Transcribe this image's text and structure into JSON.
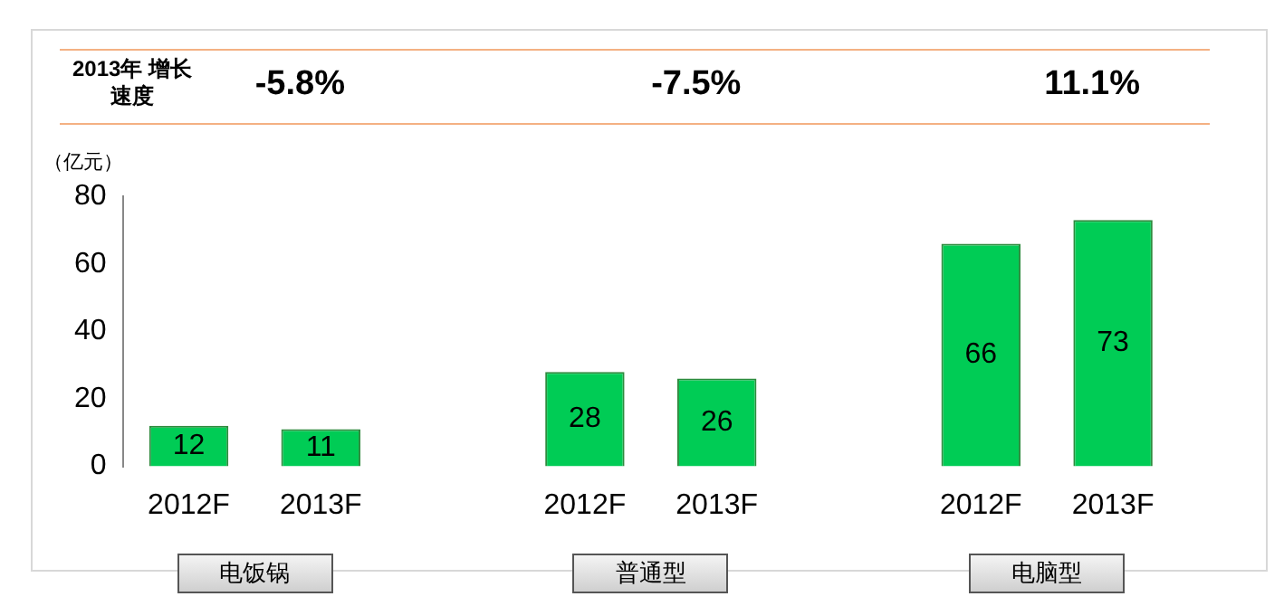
{
  "chart_data": {
    "type": "bar",
    "ylabel": "（亿元）",
    "categories": [
      "2012F",
      "2013F",
      null,
      "2012F",
      "2013F",
      null,
      "2012F",
      "2013F"
    ],
    "values": [
      12,
      11,
      null,
      28,
      26,
      null,
      66,
      73
    ],
    "color": "#00cc55",
    "data_labels": true,
    "ylim": [
      0,
      80
    ],
    "yticks": [
      0,
      20,
      40,
      60,
      80
    ],
    "grid": false,
    "legend": false,
    "annotations": [
      "2013年 增长速度",
      "-5.8%",
      "-7.5%",
      "11.1%",
      "电饭锅",
      "普通型",
      "电脑型"
    ]
  }
}
